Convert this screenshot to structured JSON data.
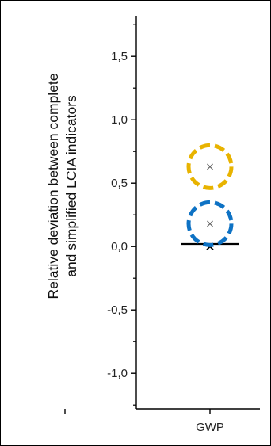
{
  "chart_data": {
    "type": "scatter",
    "title": "",
    "ylabel_lines": [
      "Relative deviation between complete",
      "and simplified LCIA indicators"
    ],
    "xlabel": "",
    "categories": [
      "GWP"
    ],
    "ylim": [
      -1.28,
      1.82
    ],
    "yticks": [
      -1.0,
      -0.5,
      0.0,
      0.5,
      1.0,
      1.5
    ],
    "ytick_labels": [
      "-1,0",
      "-0,5",
      "0,0",
      "0,5",
      "1,0",
      "1,5"
    ],
    "grid": false,
    "legend": "none",
    "series": [
      {
        "category": "GWP",
        "value": 0.63,
        "color": "#E8B300"
      },
      {
        "category": "GWP",
        "value": 0.18,
        "color": "#0E72C4"
      }
    ],
    "mean_line": {
      "category": "GWP",
      "value": 0.02,
      "color": "#000000"
    },
    "extra_markers": [
      {
        "category": "GWP",
        "value": 0.0,
        "color": "#000000"
      }
    ]
  }
}
